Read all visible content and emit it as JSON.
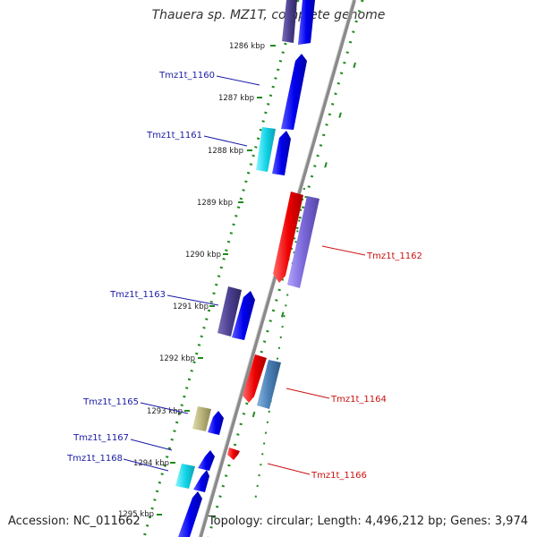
{
  "title": "Thauera sp. MZ1T, complete genome",
  "footer": {
    "accession": "Accession: NC_011662",
    "summary": "Topology: circular; Length: 4,496,212 bp; Genes: 3,974"
  },
  "colors": {
    "backbone": "#8a8a8a",
    "tick": "#1f8a1f",
    "label_forward": "#1a1aa6",
    "label_reverse": "#cc1111"
  },
  "ticks": [
    {
      "label": "1286 kbp"
    },
    {
      "label": "1287 kbp"
    },
    {
      "label": "1288 kbp"
    },
    {
      "label": "1289 kbp"
    },
    {
      "label": "1290 kbp"
    },
    {
      "label": "1291 kbp"
    },
    {
      "label": "1292 kbp"
    },
    {
      "label": "1293 kbp"
    },
    {
      "label": "1294 kbp"
    },
    {
      "label": "1295 kbp"
    }
  ],
  "gene_labels": [
    {
      "id": "tmz1t-1160",
      "text": "Tmz1t_1160",
      "strand": "forward"
    },
    {
      "id": "tmz1t-1161",
      "text": "Tmz1t_1161",
      "strand": "forward"
    },
    {
      "id": "tmz1t-1162",
      "text": "Tmz1t_1162",
      "strand": "reverse"
    },
    {
      "id": "tmz1t-1163",
      "text": "Tmz1t_1163",
      "strand": "forward"
    },
    {
      "id": "tmz1t-1164",
      "text": "Tmz1t_1164",
      "strand": "reverse"
    },
    {
      "id": "tmz1t-1165",
      "text": "Tmz1t_1165",
      "strand": "forward"
    },
    {
      "id": "tmz1t-1166",
      "text": "Tmz1t_1166",
      "strand": "reverse"
    },
    {
      "id": "tmz1t-1167",
      "text": "Tmz1t_1167",
      "strand": "forward"
    },
    {
      "id": "tmz1t-1168",
      "text": "Tmz1t_1168",
      "strand": "forward"
    }
  ],
  "features": [
    {
      "name": "cds-forward",
      "color": "#0000ee"
    },
    {
      "name": "cog-dark-purple",
      "color": "#4b3f8f"
    },
    {
      "name": "cog-cyan",
      "color": "#12d6e8"
    },
    {
      "name": "cds-reverse",
      "color": "#ee0000"
    },
    {
      "name": "cog-light-purple",
      "color": "#7b68d8"
    },
    {
      "name": "cog-steel-blue",
      "color": "#4a7fb5"
    },
    {
      "name": "cog-khaki",
      "color": "#b8b27a"
    }
  ]
}
